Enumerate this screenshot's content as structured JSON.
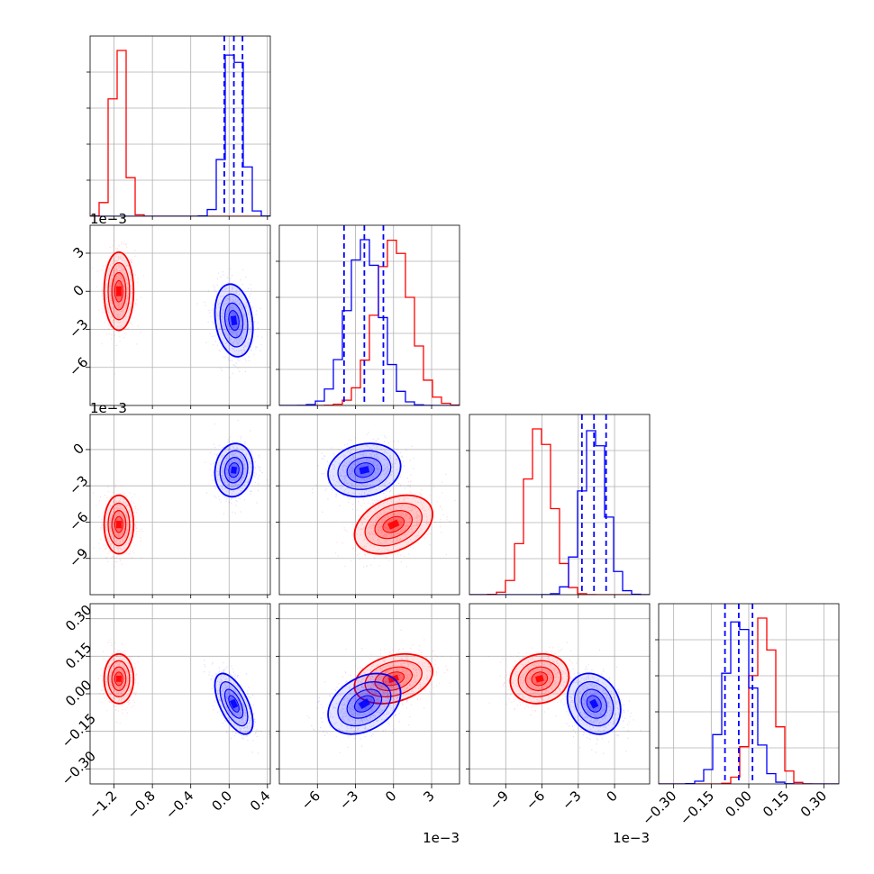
{
  "colors": {
    "red": "#ff0000",
    "blue": "#0000ff",
    "grid": "#b0b0b0",
    "axes": "#000000"
  },
  "chart_data": {
    "type": "corner",
    "title": "",
    "grid": true,
    "parameters": [
      {
        "range": [
          -1.45,
          0.43
        ],
        "ticks": [
          -1.2,
          -0.8,
          -0.4,
          0.0,
          0.4
        ],
        "tick_labels": [
          "−1.2",
          "−0.8",
          "−0.4",
          "0.0",
          "0.4"
        ],
        "offset_label": ""
      },
      {
        "range": [
          -9.0,
          5.2
        ],
        "ticks": [
          -6,
          -3,
          0,
          3
        ],
        "tick_labels": [
          "−6",
          "−3",
          "0",
          "3"
        ],
        "offset_label": "1e−3"
      },
      {
        "range": [
          -12.0,
          2.9
        ],
        "ticks": [
          -9,
          -6,
          -3,
          0
        ],
        "tick_labels": [
          "−9",
          "−6",
          "−3",
          "0"
        ],
        "offset_label": "1e−3"
      },
      {
        "range": [
          -0.36,
          0.36
        ],
        "ticks": [
          -0.3,
          -0.15,
          0.0,
          0.15,
          0.3
        ],
        "tick_labels": [
          "−0.30",
          "−0.15",
          "0.00",
          "0.15",
          "0.30"
        ],
        "offset_label": ""
      }
    ],
    "series": [
      {
        "color_key": "red",
        "means": [
          -1.15,
          0.0,
          -6.2,
          0.06
        ],
        "stds": [
          0.07,
          1.4,
          1.1,
          0.045
        ],
        "correlations": {
          "1-0": 0.0,
          "2-0": 0.0,
          "2-1": 0.35,
          "3-0": 0.0,
          "3-1": 0.3,
          "3-2": 0.1
        },
        "quantiles": null
      },
      {
        "color_key": "blue",
        "means": [
          0.05,
          -2.3,
          -1.7,
          -0.04
        ],
        "stds": [
          0.09,
          1.3,
          1.0,
          0.055
        ],
        "correlations": {
          "1-0": -0.2,
          "2-0": 0.1,
          "2-1": 0.15,
          "3-0": -0.6,
          "3-1": 0.35,
          "3-2": -0.2
        },
        "quantiles": [
          [
            -0.05,
            0.05,
            0.14
          ],
          [
            -3.9,
            -2.3,
            -0.8
          ],
          [
            -2.7,
            -1.7,
            -0.7
          ],
          [
            -0.095,
            -0.04,
            0.015
          ]
        ]
      }
    ]
  }
}
